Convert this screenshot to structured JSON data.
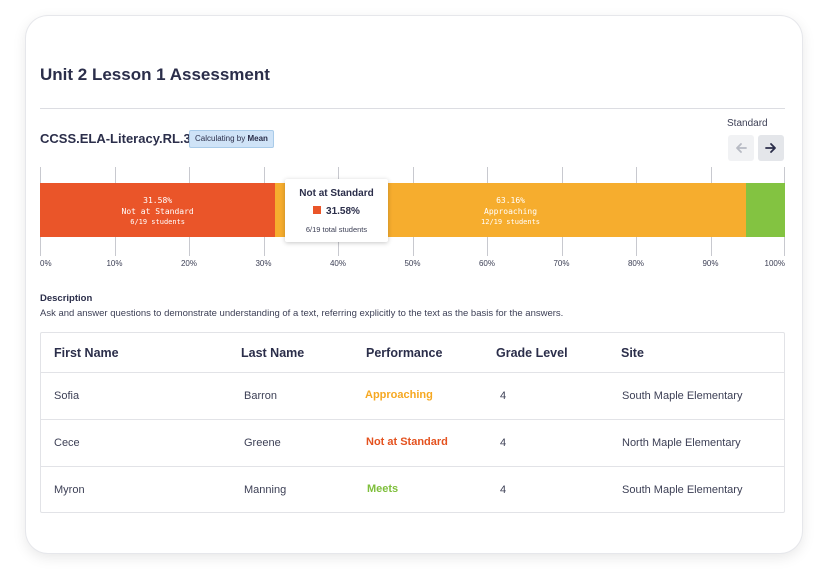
{
  "assessment": {
    "title": "Unit 2 Lesson 1 Assessment",
    "standard_code": "CCSS.ELA-Literacy.RL.3.1",
    "calc_prefix": "Calculating by",
    "calc_method": "Mean",
    "standard_nav_label": "Standard",
    "prev_icon": "arrow-left-icon",
    "next_icon": "arrow-right-icon"
  },
  "chart_data": {
    "type": "bar",
    "orientation": "horizontal-stacked",
    "segments": [
      {
        "label": "Not at Standard",
        "percent": 31.58,
        "percent_text": "31.58%",
        "count_text": "6/19 students",
        "color": "#ea5529"
      },
      {
        "label": "Approaching",
        "percent": 63.16,
        "percent_text": "63.16%",
        "count_text": "12/19 students",
        "color": "#f6ad2e"
      },
      {
        "label": "Meets",
        "percent": 5.26,
        "color": "#83c341"
      }
    ],
    "x_ticks": [
      "0%",
      "10%",
      "20%",
      "30%",
      "40%",
      "50%",
      "60%",
      "70%",
      "80%",
      "90%",
      "100%"
    ],
    "xlim": [
      0,
      100
    ],
    "grid": true
  },
  "tooltip": {
    "title": "Not at Standard",
    "value": "31.58%",
    "sub": "6/19 total students",
    "color": "#ea5529"
  },
  "description": {
    "heading": "Description",
    "text": "Ask and answer questions to demonstrate understanding of a text, referring explicitly to the text as the basis for the answers."
  },
  "table": {
    "columns": [
      "First Name",
      "Last Name",
      "Performance",
      "Grade Level",
      "Site"
    ],
    "rows": [
      {
        "first": "Sofia",
        "last": "Barron",
        "performance": "Approaching",
        "perf_color": "#f6a821",
        "grade": "4",
        "site": "South Maple Elementary"
      },
      {
        "first": "Cece",
        "last": "Greene",
        "performance": "Not at Standard",
        "perf_color": "#e4521f",
        "grade": "4",
        "site": "North Maple Elementary"
      },
      {
        "first": "Myron",
        "last": "Manning",
        "performance": "Meets",
        "perf_color": "#7fbf3c",
        "grade": "4",
        "site": "South Maple Elementary"
      }
    ]
  }
}
